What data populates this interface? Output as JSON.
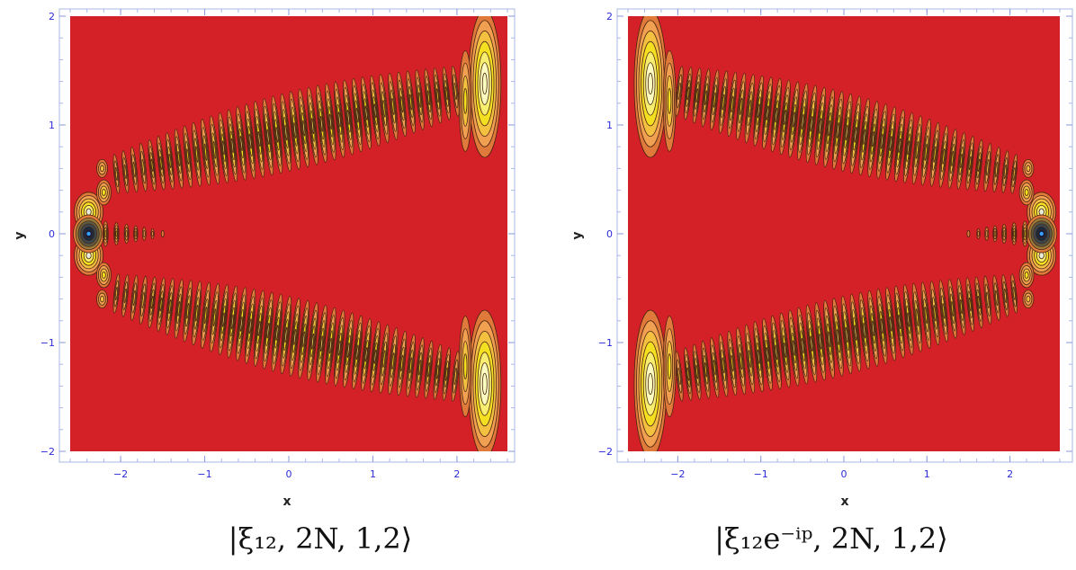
{
  "chart_data": [
    {
      "type": "contour",
      "name": "left-panel",
      "caption": "|ξ₁₂, 2N, 1,2⟩",
      "xlabel": "x",
      "ylabel": "y",
      "xlim": [
        -2.6,
        2.6
      ],
      "ylim": [
        -2,
        2
      ],
      "x_ticks": [
        -2,
        -1,
        0,
        1,
        2
      ],
      "y_ticks": [
        -2,
        -1,
        0,
        1,
        2
      ],
      "x_tick_labels": [
        "−2",
        "−1",
        "0",
        "1",
        "2"
      ],
      "y_tick_labels": [
        "−2",
        "−1",
        "0",
        "1",
        "2"
      ],
      "orientation": "origin-left",
      "background_color": "#d42027"
    },
    {
      "type": "contour",
      "name": "right-panel",
      "caption": "|ξ₁₂e⁻ⁱᵖ, 2N, 1,2⟩",
      "xlabel": "x",
      "ylabel": "y",
      "xlim": [
        -2.6,
        2.6
      ],
      "ylim": [
        -2,
        2
      ],
      "x_ticks": [
        -2,
        -1,
        0,
        1,
        2
      ],
      "y_ticks": [
        -2,
        -1,
        0,
        1,
        2
      ],
      "x_tick_labels": [
        "−2",
        "−1",
        "0",
        "1",
        "2"
      ],
      "y_tick_labels": [
        "−2",
        "−1",
        "0",
        "1",
        "2"
      ],
      "orientation": "origin-right",
      "background_color": "#d42027"
    }
  ],
  "colors": {
    "background": "#d42027",
    "contour_stroke": "#4a2412",
    "fill_low": "#e07a3a",
    "fill_mid": "#f0a050",
    "fill_high": "#f4e020",
    "fill_peak": "#fbfbc0",
    "dark_center": "#1a2a40",
    "tick_color": "#2b2bd9"
  }
}
